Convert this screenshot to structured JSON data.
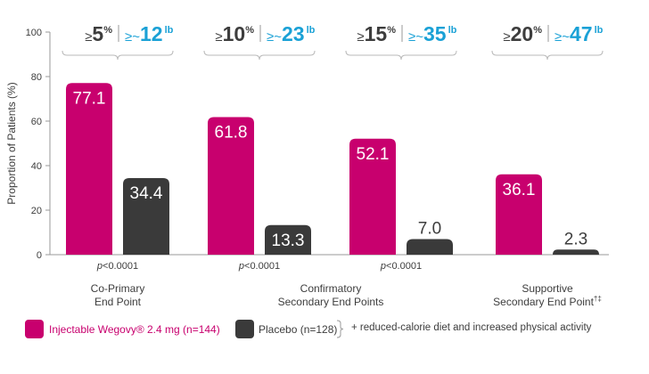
{
  "chart_data": {
    "type": "bar",
    "ylabel": "Proportion of Patients (%)",
    "ylim": [
      0,
      100
    ],
    "yticks": [
      0,
      20,
      40,
      60,
      80,
      100
    ],
    "groups": [
      {
        "threshold_pct_symbol": "≥",
        "threshold_pct": "5",
        "pct_unit": "%",
        "threshold_lb_symbol": "≥~",
        "threshold_lb": "12",
        "lb_unit": "lb",
        "semaglutide": 77.1,
        "placebo": 34.4,
        "semaglutide_label": "77.1",
        "placebo_label": "34.4",
        "p_prefix": "p",
        "p_value": "<0.0001"
      },
      {
        "threshold_pct_symbol": "≥",
        "threshold_pct": "10",
        "pct_unit": "%",
        "threshold_lb_symbol": "≥~",
        "threshold_lb": "23",
        "lb_unit": "lb",
        "semaglutide": 61.8,
        "placebo": 13.3,
        "semaglutide_label": "61.8",
        "placebo_label": "13.3",
        "p_prefix": "p",
        "p_value": "<0.0001"
      },
      {
        "threshold_pct_symbol": "≥",
        "threshold_pct": "15",
        "pct_unit": "%",
        "threshold_lb_symbol": "≥~",
        "threshold_lb": "35",
        "lb_unit": "lb",
        "semaglutide": 52.1,
        "placebo": 7.0,
        "semaglutide_label": "52.1",
        "placebo_label": "7.0",
        "p_prefix": "p",
        "p_value": "<0.0001"
      },
      {
        "threshold_pct_symbol": "≥",
        "threshold_pct": "20",
        "pct_unit": "%",
        "threshold_lb_symbol": "≥~",
        "threshold_lb": "47",
        "lb_unit": "lb",
        "semaglutide": 36.1,
        "placebo": 2.3,
        "semaglutide_label": "36.1",
        "placebo_label": "2.3",
        "p_prefix": "",
        "p_value": ""
      }
    ],
    "endpoints": [
      {
        "line1": "Co-Primary",
        "line2": "End Point",
        "sup": ""
      },
      {
        "line1": "Confirmatory",
        "line2": "Secondary End Points",
        "sup": ""
      },
      {
        "line1": "Supportive",
        "line2": "Secondary End Point",
        "sup": "†‡"
      }
    ],
    "series": [
      {
        "name": "Injectable Wegovy® 2.4 mg (n=144)",
        "color": "#c8006e"
      },
      {
        "name": "Placebo (n=128)",
        "color": "#3a3a3a"
      }
    ]
  },
  "legend": {
    "semaglutide": "Injectable Wegovy® 2.4 mg (n=144)",
    "placebo": "Placebo (n=128)",
    "note": "+ reduced-calorie diet and increased physical activity"
  },
  "colors": {
    "magenta": "#c8006e",
    "placebo": "#3a3a3a",
    "accent_blue": "#1aa1d6",
    "text": "#3d3d3d",
    "axis": "#9a9a9a",
    "brace": "#b9b9b9"
  }
}
